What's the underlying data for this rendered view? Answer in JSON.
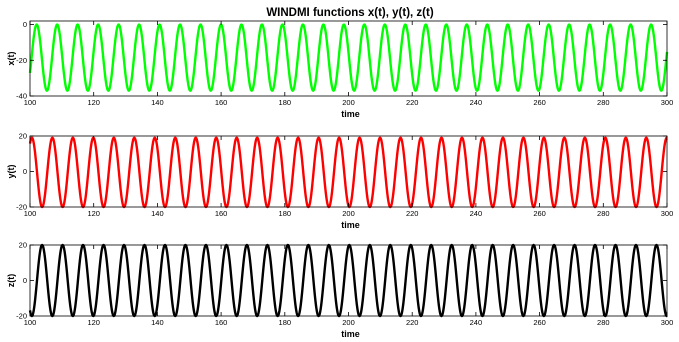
{
  "figure": {
    "title": "WINDMI functions x(t), y(t), z(t)"
  },
  "chart_data": [
    {
      "type": "line",
      "title": "WINDMI functions x(t), y(t), z(t)",
      "xlabel": "time",
      "ylabel": "x(t)",
      "xlim": [
        100,
        300
      ],
      "ylim": [
        -40,
        2
      ],
      "xticks": [
        100,
        120,
        140,
        160,
        180,
        200,
        220,
        240,
        260,
        280,
        300
      ],
      "yticks": [
        -40,
        -20,
        0
      ],
      "grid": false,
      "color": "#00ff00",
      "series": [
        {
          "waveform": "sinusoid",
          "x_start": 100,
          "x_end": 300,
          "min": -37,
          "max": 0,
          "period": 6.43,
          "first_peak_x": 102.1
        }
      ]
    },
    {
      "type": "line",
      "title": "",
      "xlabel": "time",
      "ylabel": "y(t)",
      "xlim": [
        100,
        300
      ],
      "ylim": [
        -20,
        20
      ],
      "xticks": [
        100,
        120,
        140,
        160,
        180,
        200,
        220,
        240,
        260,
        280,
        300
      ],
      "yticks": [
        -20,
        0,
        20
      ],
      "grid": false,
      "color": "#ff0000",
      "series": [
        {
          "waveform": "sinusoid",
          "x_start": 100,
          "x_end": 300,
          "min": -20,
          "max": 19,
          "period": 6.43,
          "first_peak_x": 100.6
        }
      ]
    },
    {
      "type": "line",
      "title": "",
      "xlabel": "time",
      "ylabel": "z(t)",
      "xlim": [
        100,
        300
      ],
      "ylim": [
        -20,
        20
      ],
      "xticks": [
        100,
        120,
        140,
        160,
        180,
        200,
        220,
        240,
        260,
        280,
        300
      ],
      "yticks": [
        -20,
        0,
        20
      ],
      "grid": false,
      "color": "#000000",
      "series": [
        {
          "waveform": "sinusoid",
          "x_start": 100,
          "x_end": 300,
          "min": -20,
          "max": 20,
          "period": 6.43,
          "first_peak_x": 103.8
        }
      ]
    }
  ]
}
